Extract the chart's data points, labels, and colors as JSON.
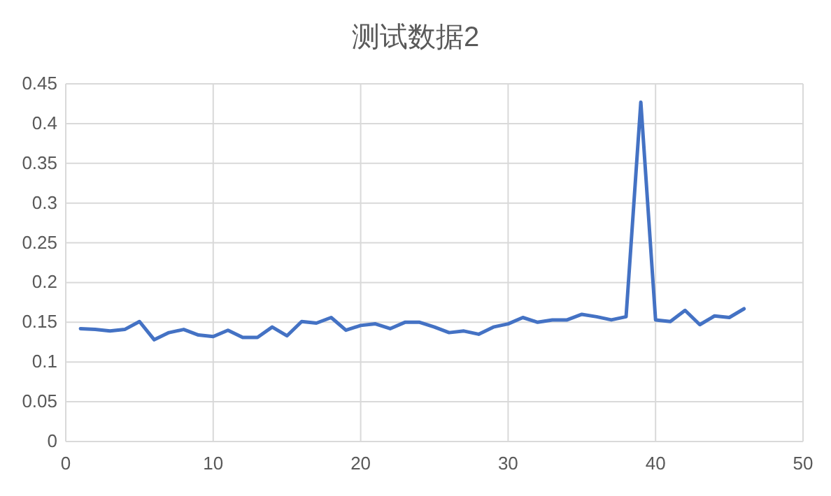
{
  "chart_data": {
    "type": "line",
    "title": "测试数据2",
    "x": [
      1,
      2,
      3,
      4,
      5,
      6,
      7,
      8,
      9,
      10,
      11,
      12,
      13,
      14,
      15,
      16,
      17,
      18,
      19,
      20,
      21,
      22,
      23,
      24,
      25,
      26,
      27,
      28,
      29,
      30,
      31,
      32,
      33,
      34,
      35,
      36,
      37,
      38,
      39,
      40,
      41,
      42,
      43,
      44,
      45,
      46
    ],
    "series": [
      {
        "color": "#4472c4",
        "values": [
          0.142,
          0.141,
          0.139,
          0.141,
          0.151,
          0.128,
          0.137,
          0.141,
          0.134,
          0.132,
          0.14,
          0.131,
          0.131,
          0.144,
          0.133,
          0.151,
          0.149,
          0.156,
          0.14,
          0.146,
          0.148,
          0.142,
          0.15,
          0.15,
          0.144,
          0.137,
          0.139,
          0.135,
          0.144,
          0.148,
          0.156,
          0.15,
          0.153,
          0.153,
          0.16,
          0.157,
          0.153,
          0.157,
          0.427,
          0.153,
          0.151,
          0.165,
          0.147,
          0.158,
          0.156,
          0.167
        ]
      }
    ],
    "xlim": [
      0,
      50
    ],
    "xticks": [
      0,
      10,
      20,
      30,
      40,
      50
    ],
    "ylim": [
      0,
      0.45
    ],
    "yticks": [
      0,
      0.05,
      0.1,
      0.15,
      0.2,
      0.25,
      0.3,
      0.35,
      0.4,
      0.45
    ],
    "grid": true,
    "marker": "none",
    "line_style": "solid"
  }
}
